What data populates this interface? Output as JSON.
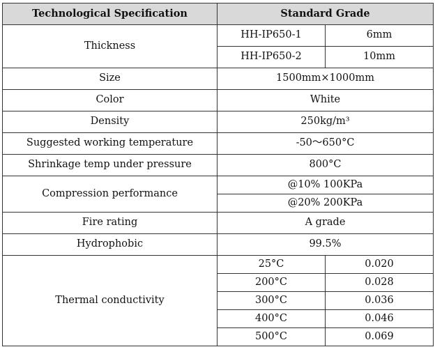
{
  "header": {
    "spec": "Technological Specification",
    "grade": "Standard Grade"
  },
  "thickness": {
    "label": "Thickness",
    "rows": [
      {
        "model": "HH-IP650-1",
        "value": "6mm"
      },
      {
        "model": "HH-IP650-2",
        "value": "10mm"
      }
    ]
  },
  "size": {
    "label": "Size",
    "value": "1500mm×1000mm"
  },
  "color": {
    "label": "Color",
    "value": "White"
  },
  "density": {
    "label": "Density",
    "value": "250kg/m³"
  },
  "working_temp": {
    "label": "Suggested working temperature",
    "value": "-50～650°C"
  },
  "shrink_temp": {
    "label": "Shrinkage temp under pressure",
    "value": "800°C"
  },
  "compression": {
    "label": "Compression performance",
    "values": [
      "@10% 100KPa",
      "@20% 200KPa"
    ]
  },
  "fire": {
    "label": "Fire rating",
    "value": "A grade"
  },
  "hydrophobic": {
    "label": "Hydrophobic",
    "value": "99.5%"
  },
  "thermal": {
    "label": "Thermal conductivity",
    "rows": [
      {
        "temp": "25°C",
        "value": "0.020"
      },
      {
        "temp": "200°C",
        "value": "0.028"
      },
      {
        "temp": "300°C",
        "value": "0.036"
      },
      {
        "temp": "400°C",
        "value": "0.046"
      },
      {
        "temp": "500°C",
        "value": "0.069"
      }
    ]
  }
}
